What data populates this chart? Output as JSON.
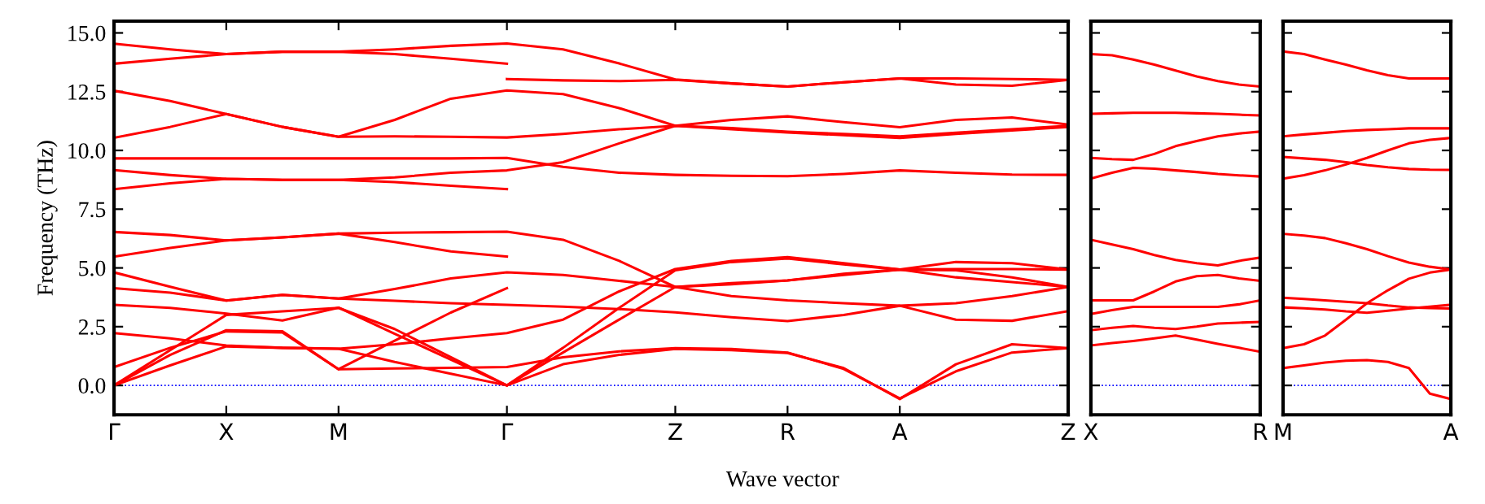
{
  "chart_data": [
    {
      "type": "line",
      "ylabel": "Frequency (THz)",
      "xlabel": "Wave vector",
      "ylim": [
        -1.25,
        15.5
      ],
      "categories": [
        "Γ",
        null,
        "X",
        null,
        "M",
        null,
        null,
        "Γ",
        null,
        null,
        "Z",
        null,
        "R",
        null,
        "A",
        null,
        null,
        "Z"
      ],
      "yticks": [
        {
          "value": 0,
          "label": "0.0"
        },
        {
          "value": 2.5,
          "label": "2.5"
        },
        {
          "value": 5,
          "label": "5.0"
        },
        {
          "value": 7.5,
          "label": "7.5"
        },
        {
          "value": 10,
          "label": "10.0"
        },
        {
          "value": 12.5,
          "label": "12.5"
        },
        {
          "value": 15,
          "label": "15.0"
        }
      ],
      "ref_lines": [
        {
          "axis": "y",
          "value": 0,
          "color": "#0000ff",
          "line_style": "dotted"
        }
      ],
      "series": [
        {
          "color": "#ff0000",
          "values": [
            14.54,
            14.3,
            14.1,
            14.2,
            14.2,
            14.3,
            14.45,
            14.55,
            14.3,
            13.7,
            13.02,
            12.85,
            12.72,
            12.9,
            13.06,
            13.06,
            13.04,
            13.0
          ]
        },
        {
          "color": "#ff0000",
          "values": [
            13.69,
            13.9,
            14.1,
            14.2,
            14.2,
            14.1,
            13.9,
            13.69,
            null,
            null,
            null,
            null,
            null,
            null,
            null,
            null,
            null,
            null
          ]
        },
        {
          "color": "#ff0000",
          "values": [
            null,
            null,
            null,
            null,
            null,
            null,
            null,
            13.04,
            12.98,
            12.95,
            13.0,
            12.85,
            12.72,
            12.9,
            13.06,
            12.8,
            12.75,
            13.0
          ]
        },
        {
          "color": "#ff0000",
          "values": [
            12.54,
            12.1,
            11.55,
            11.0,
            10.58,
            11.3,
            12.2,
            12.55,
            12.4,
            11.8,
            11.05,
            11.3,
            11.45,
            11.2,
            10.99,
            11.3,
            11.4,
            11.1
          ]
        },
        {
          "color": "#ff0000",
          "values": [
            10.54,
            11.0,
            11.55,
            11.0,
            10.58,
            10.6,
            10.58,
            10.55,
            10.7,
            10.9,
            11.05,
            10.9,
            10.76,
            10.65,
            10.53,
            10.7,
            10.85,
            11.0
          ]
        },
        {
          "color": "#ff0000",
          "values": [
            9.16,
            8.95,
            8.79,
            8.75,
            8.75,
            8.85,
            9.05,
            9.15,
            9.5,
            10.3,
            11.05,
            10.95,
            10.8,
            10.7,
            10.6,
            10.75,
            10.9,
            11.05
          ]
        },
        {
          "color": "#ff0000",
          "values": [
            9.66,
            9.66,
            9.66,
            9.66,
            9.66,
            9.66,
            9.66,
            9.68,
            9.3,
            9.05,
            8.96,
            8.92,
            8.9,
            9.0,
            9.15,
            9.05,
            8.97,
            8.96
          ]
        },
        {
          "color": "#ff0000",
          "values": [
            8.35,
            8.6,
            8.79,
            8.75,
            8.75,
            8.65,
            8.5,
            8.35,
            null,
            null,
            null,
            null,
            null,
            null,
            null,
            null,
            null,
            null
          ]
        },
        {
          "color": "#ff0000",
          "values": [
            6.53,
            6.4,
            6.17,
            6.3,
            6.46,
            6.5,
            6.52,
            6.54,
            6.2,
            5.3,
            4.19,
            3.8,
            3.62,
            3.5,
            3.39,
            3.5,
            3.8,
            4.19
          ]
        },
        {
          "color": "#ff0000",
          "values": [
            5.48,
            5.85,
            6.17,
            6.3,
            6.46,
            6.1,
            5.7,
            5.48,
            null,
            null,
            null,
            null,
            null,
            null,
            null,
            null,
            null,
            null
          ]
        },
        {
          "color": "#ff0000",
          "values": [
            4.81,
            4.2,
            3.61,
            3.85,
            3.7,
            4.1,
            4.55,
            4.81,
            4.7,
            4.45,
            4.19,
            4.3,
            4.47,
            4.7,
            4.93,
            5.25,
            5.2,
            4.93
          ]
        },
        {
          "color": "#ff0000",
          "values": [
            4.14,
            3.95,
            3.61,
            3.85,
            3.7,
            3.6,
            3.5,
            3.43,
            3.35,
            3.25,
            3.11,
            2.9,
            2.74,
            3.0,
            3.39,
            2.8,
            2.75,
            3.16
          ]
        },
        {
          "color": "#ff0000",
          "values": [
            2.23,
            2.0,
            1.7,
            1.6,
            1.56,
            1.75,
            2.0,
            2.23,
            2.8,
            4.0,
            4.95,
            5.3,
            5.46,
            5.2,
            4.93,
            4.6,
            4.4,
            4.19
          ]
        },
        {
          "color": "#ff0000",
          "values": [
            3.43,
            3.3,
            3.06,
            2.76,
            3.31,
            2.2,
            1.1,
            0,
            1.6,
            3.3,
            4.9,
            5.25,
            5.4,
            5.15,
            4.93,
            4.95,
            4.95,
            4.93
          ]
        },
        {
          "color": "#ff0000",
          "values": [
            0,
            1.5,
            3.0,
            3.15,
            3.3,
            2.4,
            1.2,
            0,
            1.4,
            2.8,
            4.19,
            4.35,
            4.47,
            4.75,
            4.93,
            4.9,
            4.6,
            4.19
          ]
        },
        {
          "color": "#ff0000",
          "values": [
            0,
            1.3,
            2.35,
            2.3,
            0.69,
            1.9,
            3.1,
            4.14,
            null,
            null,
            null,
            null,
            null,
            null,
            null,
            null,
            null,
            null
          ]
        },
        {
          "color": "#ff0000",
          "values": [
            0.78,
            1.6,
            2.3,
            2.25,
            0.69,
            0.72,
            0.75,
            0.78,
            1.2,
            1.45,
            1.59,
            1.55,
            1.4,
            0.7,
            -0.55,
            0.6,
            1.4,
            1.59
          ]
        },
        {
          "color": "#ff0000",
          "values": [
            0,
            0.85,
            1.66,
            1.6,
            1.56,
            1.0,
            0.5,
            0,
            0.9,
            1.3,
            1.55,
            1.5,
            1.38,
            0.74,
            -0.58,
            0.9,
            1.75,
            1.59
          ]
        }
      ]
    },
    {
      "type": "line",
      "tick_labels": "x",
      "ylim": [
        -1.25,
        15.5
      ],
      "categories": [
        "X",
        null,
        null,
        null,
        null,
        null,
        null,
        null,
        "R"
      ],
      "yticks": [
        {
          "value": 0,
          "label": null
        },
        {
          "value": 2.5,
          "label": null
        },
        {
          "value": 5,
          "label": null
        },
        {
          "value": 7.5,
          "label": null
        },
        {
          "value": 10,
          "label": null
        },
        {
          "value": 12.5,
          "label": null
        },
        {
          "value": 15,
          "label": null
        }
      ],
      "ref_lines": [
        {
          "axis": "y",
          "value": 0,
          "color": "#0000ff",
          "line_style": "dotted"
        }
      ],
      "series": [
        {
          "color": "#ff0000",
          "values": [
            14.1,
            14.05,
            13.87,
            13.65,
            13.4,
            13.15,
            12.95,
            12.8,
            12.72
          ]
        },
        {
          "color": "#ff0000",
          "values": [
            11.56,
            11.58,
            11.6,
            11.6,
            11.6,
            11.58,
            11.56,
            11.52,
            11.49
          ]
        },
        {
          "color": "#ff0000",
          "values": [
            9.68,
            9.63,
            9.6,
            9.85,
            10.18,
            10.4,
            10.6,
            10.72,
            10.8
          ]
        },
        {
          "color": "#ff0000",
          "values": [
            8.8,
            9.05,
            9.26,
            9.22,
            9.15,
            9.08,
            9.0,
            8.94,
            8.89
          ]
        },
        {
          "color": "#ff0000",
          "values": [
            6.2,
            6.0,
            5.8,
            5.55,
            5.34,
            5.2,
            5.11,
            5.3,
            5.44
          ]
        },
        {
          "color": "#ff0000",
          "values": [
            3.62,
            3.62,
            3.62,
            4.0,
            4.42,
            4.65,
            4.7,
            4.55,
            4.45
          ]
        },
        {
          "color": "#ff0000",
          "values": [
            3.04,
            3.2,
            3.34,
            3.34,
            3.34,
            3.34,
            3.34,
            3.45,
            3.62
          ]
        },
        {
          "color": "#ff0000",
          "values": [
            2.35,
            2.45,
            2.53,
            2.45,
            2.4,
            2.5,
            2.63,
            2.67,
            2.7
          ]
        },
        {
          "color": "#ff0000",
          "values": [
            1.7,
            1.8,
            1.89,
            2.0,
            2.12,
            1.95,
            1.77,
            1.6,
            1.43
          ]
        }
      ]
    },
    {
      "type": "line",
      "tick_labels": "x",
      "ylim": [
        -1.25,
        15.5
      ],
      "categories": [
        "M",
        null,
        null,
        null,
        null,
        null,
        null,
        null,
        "A"
      ],
      "yticks": [
        {
          "value": 0,
          "label": null
        },
        {
          "value": 2.5,
          "label": null
        },
        {
          "value": 5,
          "label": null
        },
        {
          "value": 7.5,
          "label": null
        },
        {
          "value": 10,
          "label": null
        },
        {
          "value": 12.5,
          "label": null
        },
        {
          "value": 15,
          "label": null
        }
      ],
      "ref_lines": [
        {
          "axis": "y",
          "value": 0,
          "color": "#0000ff",
          "line_style": "dotted"
        }
      ],
      "series": [
        {
          "color": "#ff0000",
          "values": [
            14.21,
            14.1,
            13.87,
            13.65,
            13.41,
            13.2,
            13.06,
            13.06,
            13.06
          ]
        },
        {
          "color": "#ff0000",
          "values": [
            10.6,
            10.68,
            10.75,
            10.82,
            10.87,
            10.9,
            10.94,
            10.94,
            10.94
          ]
        },
        {
          "color": "#ff0000",
          "values": [
            8.8,
            8.95,
            9.15,
            9.4,
            9.68,
            10.0,
            10.3,
            10.45,
            10.53
          ]
        },
        {
          "color": "#ff0000",
          "values": [
            9.72,
            9.66,
            9.6,
            9.5,
            9.38,
            9.28,
            9.21,
            9.18,
            9.17
          ]
        },
        {
          "color": "#ff0000",
          "values": [
            6.45,
            6.38,
            6.27,
            6.05,
            5.8,
            5.5,
            5.23,
            5.05,
            4.93
          ]
        },
        {
          "color": "#ff0000",
          "values": [
            1.59,
            1.75,
            2.12,
            2.8,
            3.5,
            4.05,
            4.54,
            4.8,
            4.93
          ]
        },
        {
          "color": "#ff0000",
          "values": [
            3.73,
            3.68,
            3.62,
            3.56,
            3.5,
            3.4,
            3.32,
            3.29,
            3.27
          ]
        },
        {
          "color": "#ff0000",
          "values": [
            3.32,
            3.28,
            3.23,
            3.15,
            3.09,
            3.18,
            3.27,
            3.35,
            3.43
          ]
        },
        {
          "color": "#ff0000",
          "values": [
            0.74,
            0.85,
            0.97,
            1.05,
            1.08,
            1.0,
            0.74,
            -0.35,
            -0.58
          ]
        }
      ]
    }
  ]
}
